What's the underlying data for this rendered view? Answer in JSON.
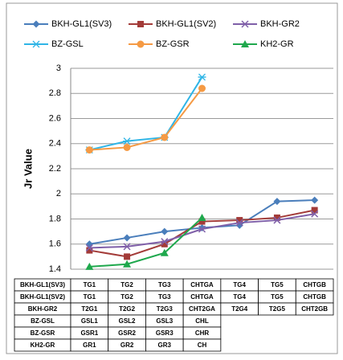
{
  "chart_data": {
    "type": "line",
    "y_label": "Jr Value",
    "ylim": [
      1.4,
      3
    ],
    "yticks": [
      1.4,
      1.6,
      1.8,
      2,
      2.2,
      2.4,
      2.6,
      2.8,
      3
    ],
    "grid": true,
    "series": [
      {
        "name": "BKH-GL1(SV3)",
        "color": "#4a7ebb",
        "marker": "diamond",
        "point_labels": [
          "TG1",
          "TG2",
          "TG3",
          "CHTGA",
          "TG4",
          "TG5",
          "CHTGB"
        ],
        "values": [
          1.6,
          1.65,
          1.7,
          1.73,
          1.75,
          1.94,
          1.95
        ]
      },
      {
        "name": "BKH-GL1(SV2)",
        "color": "#a33b38",
        "marker": "square",
        "point_labels": [
          "TG1",
          "TG2",
          "TG3",
          "CHTGA",
          "TG4",
          "TG5",
          "CHTGB"
        ],
        "values": [
          1.55,
          1.5,
          1.6,
          1.78,
          1.79,
          1.81,
          1.87
        ]
      },
      {
        "name": "BKH-GR2",
        "color": "#7f5fa8",
        "marker": "x",
        "point_labels": [
          "T2G1",
          "T2G2",
          "T2G3",
          "CHT2GA",
          "T2G4",
          "T2G5",
          "CHT2GB"
        ],
        "values": [
          1.57,
          1.58,
          1.62,
          1.72,
          1.77,
          1.79,
          1.84
        ]
      },
      {
        "name": "BZ-GSL",
        "color": "#2fb5e6",
        "marker": "star",
        "point_labels": [
          "GSL1",
          "GSL2",
          "GSL3",
          "CHL"
        ],
        "values": [
          2.35,
          2.42,
          2.45,
          2.93
        ]
      },
      {
        "name": "BZ-GSR",
        "color": "#f59a44",
        "marker": "circle",
        "point_labels": [
          "GSR1",
          "GSR2",
          "GSR3",
          "CHR"
        ],
        "values": [
          2.35,
          2.37,
          2.45,
          2.84
        ]
      },
      {
        "name": "KH2-GR",
        "color": "#1fa84d",
        "marker": "triangle",
        "point_labels": [
          "GR1",
          "GR2",
          "GR3",
          "CH"
        ],
        "values": [
          1.42,
          1.44,
          1.53,
          1.81
        ]
      }
    ]
  }
}
